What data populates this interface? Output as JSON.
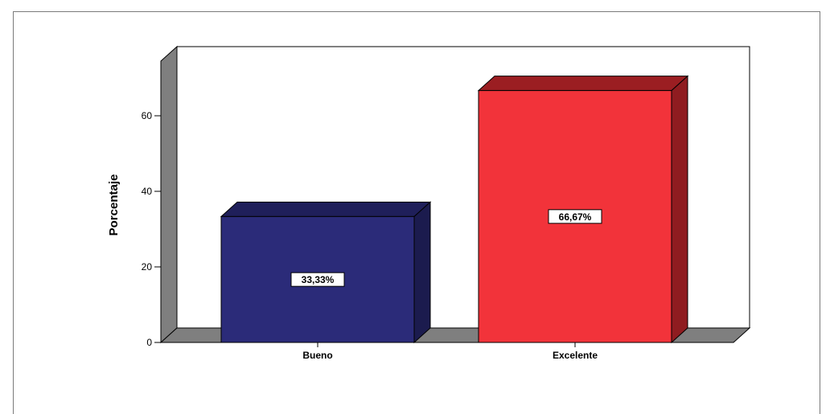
{
  "chart_data": {
    "type": "bar",
    "categories": [
      "Bueno",
      "Excelente"
    ],
    "values": [
      33.33,
      66.67
    ],
    "value_labels": [
      "33,33%",
      "66,67%"
    ],
    "ylabel": "Porcentaje",
    "xlabel": "",
    "yticks": [
      "0",
      "20",
      "40",
      "60"
    ],
    "ylim": [
      0,
      70
    ],
    "style": "3d",
    "grid": false,
    "legend": "none",
    "colors": {
      "bar_1_front": "#2b2b79",
      "bar_1_top": "#1f1f5a",
      "bar_1_side": "#1b1b4e",
      "bar_2_front": "#f2333a",
      "bar_2_top": "#9b1e22",
      "bar_2_side": "#8f1c20",
      "wall": "#7f7f7f",
      "floor": "#7f7f7f"
    }
  }
}
